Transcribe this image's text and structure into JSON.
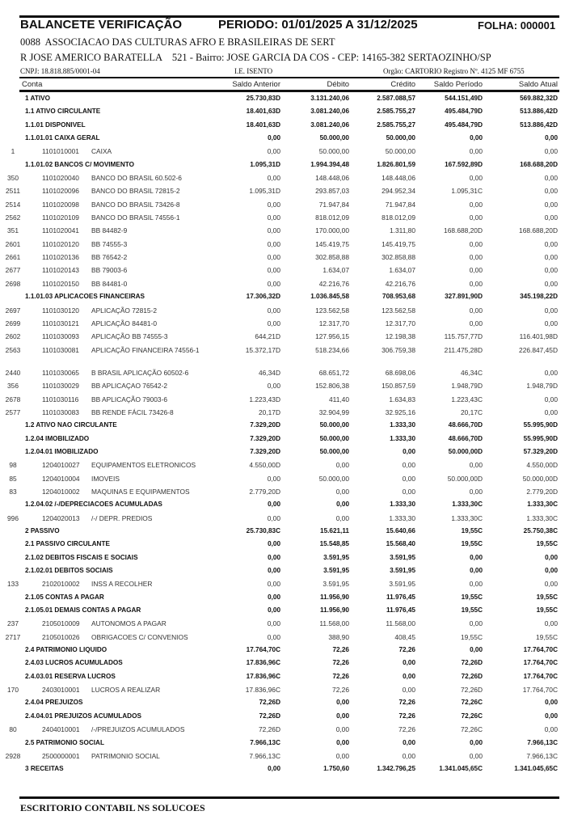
{
  "header": {
    "title": "BALANCETE VERIFICAÇÃO",
    "period": "PERIODO: 01/01/2025 A 31/12/2025",
    "sheet": "FOLHA: 000001",
    "entity": "0088  ASSOCIACAO DAS CULTURAS AFRO E BRASILEIRAS DE SERT",
    "address": "R JOSE AMERICO BARATELLA    521 - Bairro: JOSE GARCIA DA COS - CEP: 14165-382 SERTAOZINHO/SP",
    "cnpj": "CNPJ:  18.818.885/0001-04",
    "ie": "I.E. ISENTO",
    "orgao": "Orgão: CARTORIO Registro Nº. 4125 MF 6755"
  },
  "columns": [
    "Conta",
    "Saldo Anterior",
    "Débito",
    "Crédito",
    "Saldo Período",
    "Saldo Atual"
  ],
  "rows": [
    {
      "type": "group",
      "label": "1 ATIVO",
      "values": [
        "25.730,83D",
        "3.131.240,06",
        "2.587.088,57",
        "544.151,49D",
        "569.882,32D"
      ]
    },
    {
      "type": "group",
      "label": "1.1 ATIVO CIRCULANTE",
      "values": [
        "18.401,63D",
        "3.081.240,06",
        "2.585.755,27",
        "495.484,79D",
        "513.886,42D"
      ]
    },
    {
      "type": "group",
      "label": "1.1.01 DISPONIVEL",
      "values": [
        "18.401,63D",
        "3.081.240,06",
        "2.585.755,27",
        "495.484,79D",
        "513.886,42D"
      ]
    },
    {
      "type": "group",
      "label": "1.1.01.01 CAIXA GERAL",
      "values": [
        "0,00",
        "50.000,00",
        "50.000,00",
        "0,00",
        "0,00"
      ]
    },
    {
      "type": "account",
      "no": "1",
      "code": "1101010001",
      "name": "CAIXA",
      "values": [
        "0,00",
        "50.000,00",
        "50.000,00",
        "0,00",
        "0,00"
      ]
    },
    {
      "type": "group",
      "label": "1.1.01.02 BANCOS C/ MOVIMENTO",
      "values": [
        "1.095,31D",
        "1.994.394,48",
        "1.826.801,59",
        "167.592,89D",
        "168.688,20D"
      ]
    },
    {
      "type": "account",
      "no": "350",
      "code": "1101020040",
      "name": "BANCO DO BRASIL 60.502-6",
      "values": [
        "0,00",
        "148.448,06",
        "148.448,06",
        "0,00",
        "0,00"
      ]
    },
    {
      "type": "account",
      "no": "2511",
      "code": "1101020096",
      "name": "BANCO DO BRASIL 72815-2",
      "values": [
        "1.095,31D",
        "293.857,03",
        "294.952,34",
        "1.095,31C",
        "0,00"
      ]
    },
    {
      "type": "account",
      "no": "2514",
      "code": "1101020098",
      "name": "BANCO DO BRASIL 73426-8",
      "values": [
        "0,00",
        "71.947,84",
        "71.947,84",
        "0,00",
        "0,00"
      ]
    },
    {
      "type": "account",
      "no": "2562",
      "code": "1101020109",
      "name": "BANCO DO BRASIL 74556-1",
      "values": [
        "0,00",
        "818.012,09",
        "818.012,09",
        "0,00",
        "0,00"
      ]
    },
    {
      "type": "account",
      "no": "351",
      "code": "1101020041",
      "name": "BB  84482-9",
      "values": [
        "0,00",
        "170.000,00",
        "1.311,80",
        "168.688,20D",
        "168.688,20D"
      ]
    },
    {
      "type": "account",
      "no": "2601",
      "code": "1101020120",
      "name": "BB 74555-3",
      "values": [
        "0,00",
        "145.419,75",
        "145.419,75",
        "0,00",
        "0,00"
      ]
    },
    {
      "type": "account",
      "no": "2661",
      "code": "1101020136",
      "name": "BB 76542-2",
      "values": [
        "0,00",
        "302.858,88",
        "302.858,88",
        "0,00",
        "0,00"
      ]
    },
    {
      "type": "account",
      "no": "2677",
      "code": "1101020143",
      "name": "BB 79003-6",
      "values": [
        "0,00",
        "1.634,07",
        "1.634,07",
        "0,00",
        "0,00"
      ]
    },
    {
      "type": "account",
      "no": "2698",
      "code": "1101020150",
      "name": "BB 84481-0",
      "values": [
        "0,00",
        "42.216,76",
        "42.216,76",
        "0,00",
        "0,00"
      ]
    },
    {
      "type": "group",
      "label": "1.1.01.03 APLICACOES FINANCEIRAS",
      "values": [
        "17.306,32D",
        "1.036.845,58",
        "708.953,68",
        "327.891,90D",
        "345.198,22D"
      ]
    },
    {
      "type": "account",
      "no": "2697",
      "code": "1101030120",
      "name": "APLICAÇÃO 72815-2",
      "values": [
        "0,00",
        "123.562,58",
        "123.562,58",
        "0,00",
        "0,00"
      ]
    },
    {
      "type": "account",
      "no": "2699",
      "code": "1101030121",
      "name": "APLICAÇÃO 84481-0",
      "values": [
        "0,00",
        "12.317,70",
        "12.317,70",
        "0,00",
        "0,00"
      ]
    },
    {
      "type": "account",
      "no": "2602",
      "code": "1101030093",
      "name": "APLICAÇÃO BB 74555-3",
      "values": [
        "644,21D",
        "127.956,15",
        "12.198,38",
        "115.757,77D",
        "116.401,98D"
      ]
    },
    {
      "type": "account",
      "no": "2563",
      "code": "1101030081",
      "name": "APLICAÇÃO FINANCEIRA 74556-1",
      "values": [
        "15.372,17D",
        "518.234,66",
        "306.759,38",
        "211.475,28D",
        "226.847,45D"
      ]
    },
    {
      "type": "spacer"
    },
    {
      "type": "account",
      "no": "2440",
      "code": "1101030065",
      "name": "B BRASIL APLICAÇÃO 60502-6",
      "values": [
        "46,34D",
        "68.651,72",
        "68.698,06",
        "46,34C",
        "0,00"
      ]
    },
    {
      "type": "account",
      "no": "356",
      "code": "1101030029",
      "name": "BB APLICAÇAO 76542-2",
      "values": [
        "0,00",
        "152.806,38",
        "150.857,59",
        "1.948,79D",
        "1.948,79D"
      ]
    },
    {
      "type": "account",
      "no": "2678",
      "code": "1101030116",
      "name": "BB APLICAÇÃO 79003-6",
      "values": [
        "1.223,43D",
        "411,40",
        "1.634,83",
        "1.223,43C",
        "0,00"
      ]
    },
    {
      "type": "account",
      "no": "2577",
      "code": "1101030083",
      "name": "BB RENDE FÁCIL 73426-8",
      "values": [
        "20,17D",
        "32.904,99",
        "32.925,16",
        "20,17C",
        "0,00"
      ]
    },
    {
      "type": "group",
      "label": "1.2 ATIVO NAO CIRCULANTE",
      "values": [
        "7.329,20D",
        "50.000,00",
        "1.333,30",
        "48.666,70D",
        "55.995,90D"
      ]
    },
    {
      "type": "group",
      "label": "1.2.04 IMOBILIZADO",
      "values": [
        "7.329,20D",
        "50.000,00",
        "1.333,30",
        "48.666,70D",
        "55.995,90D"
      ]
    },
    {
      "type": "group",
      "label": "1.2.04.01 IMOBILIZADO",
      "values": [
        "7.329,20D",
        "50.000,00",
        "0,00",
        "50.000,00D",
        "57.329,20D"
      ]
    },
    {
      "type": "account",
      "no": "98",
      "code": "1204010027",
      "name": "EQUIPAMENTOS ELETRONICOS",
      "values": [
        "4.550,00D",
        "0,00",
        "0,00",
        "0,00",
        "4.550,00D"
      ]
    },
    {
      "type": "account",
      "no": "85",
      "code": "1204010004",
      "name": "IMOVEIS",
      "values": [
        "0,00",
        "50.000,00",
        "0,00",
        "50.000,00D",
        "50.000,00D"
      ]
    },
    {
      "type": "account",
      "no": "83",
      "code": "1204010002",
      "name": "MAQUINAS E EQUIPAMENTOS",
      "values": [
        "2.779,20D",
        "0,00",
        "0,00",
        "0,00",
        "2.779,20D"
      ]
    },
    {
      "type": "group",
      "label": "1.2.04.02 /-/DEPRECIACOES ACUMULADAS",
      "values": [
        "0,00",
        "0,00",
        "1.333,30",
        "1.333,30C",
        "1.333,30C"
      ]
    },
    {
      "type": "account",
      "no": "996",
      "code": "1204020013",
      "name": "/-/ DEPR. PREDIOS",
      "values": [
        "0,00",
        "0,00",
        "1.333,30",
        "1.333,30C",
        "1.333,30C"
      ]
    },
    {
      "type": "group",
      "label": "2 PASSIVO",
      "values": [
        "25.730,83C",
        "15.621,11",
        "15.640,66",
        "19,55C",
        "25.750,38C"
      ]
    },
    {
      "type": "group",
      "label": "2.1 PASSIVO CIRCULANTE",
      "values": [
        "0,00",
        "15.548,85",
        "15.568,40",
        "19,55C",
        "19,55C"
      ]
    },
    {
      "type": "group",
      "label": "2.1.02 DEBITOS FISCAIS E SOCIAIS",
      "values": [
        "0,00",
        "3.591,95",
        "3.591,95",
        "0,00",
        "0,00"
      ]
    },
    {
      "type": "group",
      "label": "2.1.02.01 DEBITOS SOCIAIS",
      "values": [
        "0,00",
        "3.591,95",
        "3.591,95",
        "0,00",
        "0,00"
      ]
    },
    {
      "type": "account",
      "no": "133",
      "code": "2102010002",
      "name": "INSS A RECOLHER",
      "values": [
        "0,00",
        "3.591,95",
        "3.591,95",
        "0,00",
        "0,00"
      ]
    },
    {
      "type": "group",
      "label": "2.1.05 CONTAS A PAGAR",
      "values": [
        "0,00",
        "11.956,90",
        "11.976,45",
        "19,55C",
        "19,55C"
      ]
    },
    {
      "type": "group",
      "label": "2.1.05.01 DEMAIS CONTAS A PAGAR",
      "values": [
        "0,00",
        "11.956,90",
        "11.976,45",
        "19,55C",
        "19,55C"
      ]
    },
    {
      "type": "account",
      "no": "237",
      "code": "2105010009",
      "name": "AUTONOMOS A PAGAR",
      "values": [
        "0,00",
        "11.568,00",
        "11.568,00",
        "0,00",
        "0,00"
      ]
    },
    {
      "type": "account",
      "no": "2717",
      "code": "2105010026",
      "name": "OBRIGACOES C/ CONVENIOS",
      "values": [
        "0,00",
        "388,90",
        "408,45",
        "19,55C",
        "19,55C"
      ]
    },
    {
      "type": "group",
      "label": "2.4 PATRIMONIO LIQUIDO",
      "values": [
        "17.764,70C",
        "72,26",
        "72,26",
        "0,00",
        "17.764,70C"
      ]
    },
    {
      "type": "group",
      "label": "2.4.03 LUCROS ACUMULADOS",
      "values": [
        "17.836,96C",
        "72,26",
        "0,00",
        "72,26D",
        "17.764,70C"
      ]
    },
    {
      "type": "group",
      "label": "2.4.03.01 RESERVA LUCROS",
      "values": [
        "17.836,96C",
        "72,26",
        "0,00",
        "72,26D",
        "17.764,70C"
      ]
    },
    {
      "type": "account",
      "no": "170",
      "code": "2403010001",
      "name": "LUCROS A REALIZAR",
      "values": [
        "17.836,96C",
        "72,26",
        "0,00",
        "72,26D",
        "17.764,70C"
      ]
    },
    {
      "type": "group",
      "label": "2.4.04 PREJUIZOS",
      "values": [
        "72,26D",
        "0,00",
        "72,26",
        "72,26C",
        "0,00"
      ]
    },
    {
      "type": "group",
      "label": "2.4.04.01 PREJUIZOS ACUMULADOS",
      "values": [
        "72,26D",
        "0,00",
        "72,26",
        "72,26C",
        "0,00"
      ]
    },
    {
      "type": "account",
      "no": "80",
      "code": "2404010001",
      "name": "/-/PREJUIZOS ACUMULADOS",
      "values": [
        "72,26D",
        "0,00",
        "72,26",
        "72,26C",
        "0,00"
      ]
    },
    {
      "type": "group",
      "label": "2.5 PATRIMONIO SOCIAL",
      "values": [
        "7.966,13C",
        "0,00",
        "0,00",
        "0,00",
        "7.966,13C"
      ]
    },
    {
      "type": "account",
      "no": "2928",
      "code": "2500000001",
      "name": "PATRIMONIO SOCIAL",
      "values": [
        "7.966,13C",
        "0,00",
        "0,00",
        "0,00",
        "7.966,13C"
      ]
    },
    {
      "type": "group",
      "label": "3 RECEITAS",
      "values": [
        "0,00",
        "1.750,60",
        "1.342.796,25",
        "1.341.045,65C",
        "1.341.045,65C"
      ]
    }
  ],
  "footer": {
    "office": "ESCRITORIO CONTABIL NS SOLUCOES"
  }
}
